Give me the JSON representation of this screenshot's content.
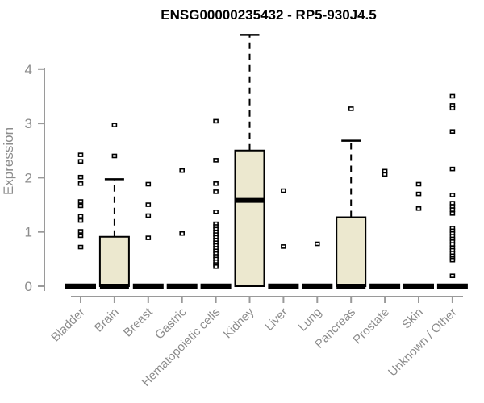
{
  "title": "ENSG00000235432 - RP5-930J4.5",
  "chart_data": {
    "type": "boxplot",
    "title": "ENSG00000235432 - RP5-930J4.5",
    "xlabel": "",
    "ylabel": "Expression",
    "ylim": [
      0,
      4.65
    ],
    "yticks": [
      0,
      1,
      2,
      3,
      4
    ],
    "grid": false,
    "legend": "none",
    "categories": [
      "Bladder",
      "Brain",
      "Breast",
      "Gastric",
      "Hematopoietic cells",
      "Kidney",
      "Liver",
      "Lung",
      "Pancreas",
      "Prostate",
      "Skin",
      "Unknown / Other"
    ],
    "series": [
      {
        "name": "Bladder",
        "q1": 0,
        "median": 0,
        "q3": 0,
        "whisker_low": 0,
        "whisker_high": 0,
        "outliers": [
          2.42,
          2.3,
          2.01,
          1.89,
          1.56,
          1.48,
          1.29,
          1.21,
          1.01,
          0.93,
          0.72
        ]
      },
      {
        "name": "Brain",
        "q1": 0,
        "median": 0,
        "q3": 0.91,
        "whisker_low": 0,
        "whisker_high": 1.97,
        "outliers": [
          2.97,
          2.4
        ]
      },
      {
        "name": "Breast",
        "q1": 0,
        "median": 0,
        "q3": 0,
        "whisker_low": 0,
        "whisker_high": 0,
        "outliers": [
          1.88,
          1.5,
          1.3,
          0.89
        ]
      },
      {
        "name": "Gastric",
        "q1": 0,
        "median": 0,
        "q3": 0,
        "whisker_low": 0,
        "whisker_high": 0,
        "outliers": [
          2.13,
          0.97
        ]
      },
      {
        "name": "Hematopoietic cells",
        "q1": 0,
        "median": 0,
        "q3": 0,
        "whisker_low": 0,
        "whisker_high": 0,
        "outliers": [
          3.04,
          2.32,
          1.89,
          1.74,
          1.37,
          1.15,
          1.1,
          1.05,
          1.0,
          0.95,
          0.9,
          0.85,
          0.8,
          0.75,
          0.7,
          0.65,
          0.6,
          0.55,
          0.5,
          0.45,
          0.4,
          0.36
        ]
      },
      {
        "name": "Kidney",
        "q1": 0,
        "median": 1.58,
        "q3": 2.5,
        "whisker_low": 0,
        "whisker_high": 4.63,
        "outliers": []
      },
      {
        "name": "Liver",
        "q1": 0,
        "median": 0,
        "q3": 0,
        "whisker_low": 0,
        "whisker_high": 0,
        "outliers": [
          1.76,
          0.73
        ]
      },
      {
        "name": "Lung",
        "q1": 0,
        "median": 0,
        "q3": 0,
        "whisker_low": 0,
        "whisker_high": 0,
        "outliers": [
          0.78
        ]
      },
      {
        "name": "Pancreas",
        "q1": 0,
        "median": 0,
        "q3": 1.27,
        "whisker_low": 0,
        "whisker_high": 2.68,
        "outliers": [
          3.27
        ]
      },
      {
        "name": "Prostate",
        "q1": 0,
        "median": 0,
        "q3": 0,
        "whisker_low": 0,
        "whisker_high": 0,
        "outliers": [
          2.12,
          2.06
        ]
      },
      {
        "name": "Skin",
        "q1": 0,
        "median": 0,
        "q3": 0,
        "whisker_low": 0,
        "whisker_high": 0,
        "outliers": [
          1.88,
          1.7,
          1.43
        ]
      },
      {
        "name": "Unknown / Other",
        "q1": 0,
        "median": 0,
        "q3": 0,
        "whisker_low": 0,
        "whisker_high": 0,
        "outliers": [
          3.5,
          3.33,
          3.28,
          2.85,
          2.16,
          1.68,
          1.53,
          1.47,
          1.41,
          1.34,
          1.07,
          1.02,
          0.97,
          0.92,
          0.87,
          0.82,
          0.77,
          0.71,
          0.66,
          0.61,
          0.56,
          0.51,
          0.48,
          0.19
        ]
      }
    ],
    "colors": {
      "box_fill": "#ece8cf",
      "box_stroke": "#000000",
      "median": "#000000",
      "whisker": "#000000",
      "outlier_stroke": "#000000",
      "outlier_fill": "#ffffff",
      "axis_line": "#9a9a9a",
      "axis_text": "#8c8c8c",
      "title_text": "#000000",
      "background": "#ffffff"
    }
  }
}
